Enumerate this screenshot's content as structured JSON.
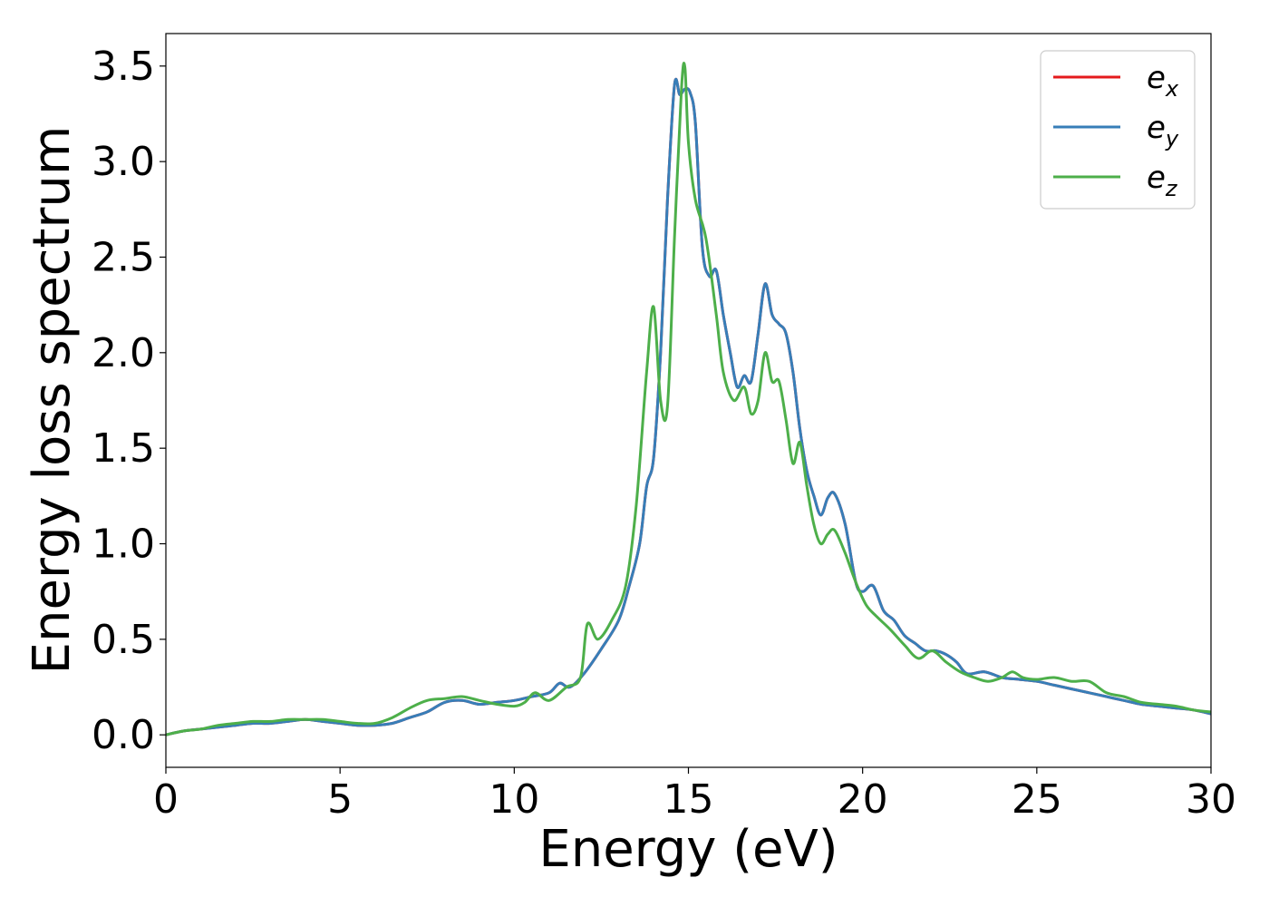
{
  "chart_data": {
    "type": "line",
    "xlabel": "Energy (eV)",
    "ylabel": "Energy loss spectrum",
    "xlim": [
      0,
      30
    ],
    "ylim": [
      -0.17,
      3.67
    ],
    "xticks": [
      0,
      5,
      10,
      15,
      20,
      25,
      30
    ],
    "xtick_labels": [
      "0",
      "5",
      "10",
      "15",
      "20",
      "25",
      "30"
    ],
    "yticks": [
      0.0,
      0.5,
      1.0,
      1.5,
      2.0,
      2.5,
      3.0,
      3.5
    ],
    "ytick_labels": [
      "0.0",
      "0.5",
      "1.0",
      "1.5",
      "2.0",
      "2.5",
      "3.0",
      "3.5"
    ],
    "grid": false,
    "legend_position": "top-right",
    "series": [
      {
        "name": "e_x",
        "legend_base": "e",
        "legend_sub": "x",
        "color": "#e41a1c",
        "x": [
          0,
          0.5,
          1,
          1.5,
          2,
          2.5,
          3,
          3.5,
          4,
          4.5,
          5,
          5.5,
          6,
          6.5,
          7,
          7.5,
          8,
          8.5,
          9,
          9.5,
          10,
          10.5,
          11,
          11.3,
          11.6,
          12,
          12.5,
          13,
          13.3,
          13.6,
          13.8,
          14,
          14.2,
          14.4,
          14.6,
          14.75,
          14.9,
          15.05,
          15.2,
          15.4,
          15.6,
          15.8,
          16,
          16.2,
          16.4,
          16.6,
          16.8,
          17,
          17.2,
          17.4,
          17.6,
          17.8,
          18,
          18.2,
          18.4,
          18.6,
          18.8,
          19,
          19.2,
          19.5,
          19.8,
          20,
          20.3,
          20.6,
          20.9,
          21.2,
          21.5,
          21.8,
          22.1,
          22.4,
          22.7,
          23,
          23.5,
          24,
          24.5,
          25,
          25.5,
          26,
          26.5,
          27,
          27.5,
          28,
          28.5,
          29,
          29.5,
          30
        ],
        "y": [
          0.0,
          0.02,
          0.03,
          0.04,
          0.05,
          0.06,
          0.06,
          0.07,
          0.08,
          0.07,
          0.06,
          0.05,
          0.05,
          0.06,
          0.09,
          0.12,
          0.17,
          0.18,
          0.16,
          0.17,
          0.18,
          0.2,
          0.22,
          0.27,
          0.25,
          0.32,
          0.45,
          0.6,
          0.78,
          1.0,
          1.3,
          1.45,
          2.0,
          2.8,
          3.4,
          3.35,
          3.38,
          3.36,
          3.2,
          2.55,
          2.4,
          2.43,
          2.2,
          2.0,
          1.82,
          1.88,
          1.85,
          2.1,
          2.36,
          2.2,
          2.15,
          2.1,
          1.9,
          1.6,
          1.38,
          1.25,
          1.15,
          1.24,
          1.26,
          1.1,
          0.8,
          0.75,
          0.78,
          0.65,
          0.6,
          0.52,
          0.48,
          0.44,
          0.44,
          0.42,
          0.38,
          0.32,
          0.33,
          0.3,
          0.29,
          0.28,
          0.26,
          0.24,
          0.22,
          0.2,
          0.18,
          0.16,
          0.15,
          0.14,
          0.13,
          0.11
        ]
      },
      {
        "name": "e_y",
        "legend_base": "e",
        "legend_sub": "y",
        "color": "#377eb8",
        "x": [
          0,
          0.5,
          1,
          1.5,
          2,
          2.5,
          3,
          3.5,
          4,
          4.5,
          5,
          5.5,
          6,
          6.5,
          7,
          7.5,
          8,
          8.5,
          9,
          9.5,
          10,
          10.5,
          11,
          11.3,
          11.6,
          12,
          12.5,
          13,
          13.3,
          13.6,
          13.8,
          14,
          14.2,
          14.4,
          14.6,
          14.75,
          14.9,
          15.05,
          15.2,
          15.4,
          15.6,
          15.8,
          16,
          16.2,
          16.4,
          16.6,
          16.8,
          17,
          17.2,
          17.4,
          17.6,
          17.8,
          18,
          18.2,
          18.4,
          18.6,
          18.8,
          19,
          19.2,
          19.5,
          19.8,
          20,
          20.3,
          20.6,
          20.9,
          21.2,
          21.5,
          21.8,
          22.1,
          22.4,
          22.7,
          23,
          23.5,
          24,
          24.5,
          25,
          25.5,
          26,
          26.5,
          27,
          27.5,
          28,
          28.5,
          29,
          29.5,
          30
        ],
        "y": [
          0.0,
          0.02,
          0.03,
          0.04,
          0.05,
          0.06,
          0.06,
          0.07,
          0.08,
          0.07,
          0.06,
          0.05,
          0.05,
          0.06,
          0.09,
          0.12,
          0.17,
          0.18,
          0.16,
          0.17,
          0.18,
          0.2,
          0.22,
          0.27,
          0.25,
          0.32,
          0.45,
          0.6,
          0.78,
          1.0,
          1.3,
          1.45,
          2.0,
          2.8,
          3.4,
          3.35,
          3.38,
          3.36,
          3.2,
          2.55,
          2.4,
          2.43,
          2.2,
          2.0,
          1.82,
          1.88,
          1.85,
          2.1,
          2.36,
          2.2,
          2.15,
          2.1,
          1.9,
          1.6,
          1.38,
          1.25,
          1.15,
          1.24,
          1.26,
          1.1,
          0.8,
          0.75,
          0.78,
          0.65,
          0.6,
          0.52,
          0.48,
          0.44,
          0.44,
          0.42,
          0.38,
          0.32,
          0.33,
          0.3,
          0.29,
          0.28,
          0.26,
          0.24,
          0.22,
          0.2,
          0.18,
          0.16,
          0.15,
          0.14,
          0.13,
          0.11
        ]
      },
      {
        "name": "e_z",
        "legend_base": "e",
        "legend_sub": "z",
        "color": "#4daf4a",
        "x": [
          0,
          0.5,
          1,
          1.5,
          2,
          2.5,
          3,
          3.5,
          4,
          4.5,
          5,
          5.5,
          6,
          6.5,
          7,
          7.5,
          8,
          8.5,
          9,
          9.5,
          10,
          10.3,
          10.6,
          11,
          11.5,
          11.9,
          12.1,
          12.4,
          12.8,
          13.2,
          13.5,
          13.8,
          14.0,
          14.2,
          14.4,
          14.6,
          14.8,
          14.9,
          15.0,
          15.2,
          15.5,
          15.8,
          16.0,
          16.3,
          16.6,
          16.8,
          17.0,
          17.2,
          17.4,
          17.6,
          17.8,
          18.0,
          18.2,
          18.4,
          18.6,
          18.8,
          19.0,
          19.2,
          19.5,
          19.8,
          20.1,
          20.4,
          20.8,
          21.2,
          21.6,
          22.0,
          22.4,
          22.8,
          23.2,
          23.6,
          24.0,
          24.3,
          24.6,
          25.0,
          25.5,
          26.0,
          26.5,
          27.0,
          27.5,
          28.0,
          28.5,
          29.0,
          29.5,
          30.0
        ],
        "y": [
          0.0,
          0.02,
          0.03,
          0.05,
          0.06,
          0.07,
          0.07,
          0.08,
          0.08,
          0.08,
          0.07,
          0.06,
          0.06,
          0.09,
          0.14,
          0.18,
          0.19,
          0.2,
          0.18,
          0.16,
          0.15,
          0.17,
          0.22,
          0.18,
          0.25,
          0.3,
          0.58,
          0.5,
          0.6,
          0.78,
          1.2,
          1.9,
          2.24,
          1.75,
          1.72,
          2.6,
          3.38,
          3.49,
          3.1,
          2.8,
          2.6,
          2.2,
          1.9,
          1.75,
          1.82,
          1.68,
          1.75,
          2.0,
          1.85,
          1.85,
          1.65,
          1.42,
          1.53,
          1.3,
          1.1,
          1.0,
          1.05,
          1.07,
          0.95,
          0.8,
          0.68,
          0.62,
          0.55,
          0.47,
          0.4,
          0.44,
          0.38,
          0.33,
          0.3,
          0.28,
          0.3,
          0.33,
          0.3,
          0.29,
          0.3,
          0.28,
          0.28,
          0.22,
          0.2,
          0.17,
          0.16,
          0.15,
          0.13,
          0.12
        ]
      }
    ]
  }
}
